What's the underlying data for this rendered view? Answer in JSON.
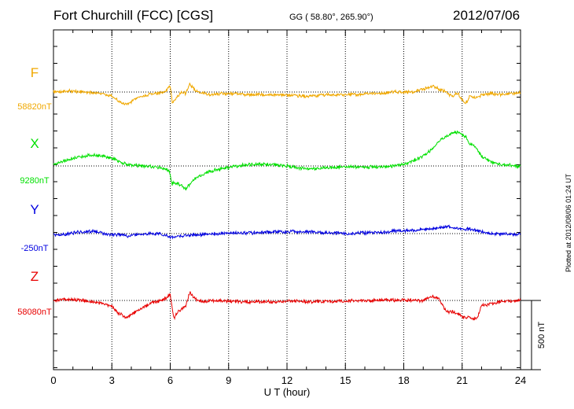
{
  "header": {
    "station": "Fort Churchill (FCC)  [CGS]",
    "coords": "GG ( 58.80°, 265.90°)",
    "date": "2012/07/06"
  },
  "footer": {
    "plotted": "Plotted at 2012/08/06 01:24 UT"
  },
  "colors": {
    "F": "#f0a800",
    "X": "#00e000",
    "Y": "#0000e0",
    "Z": "#e80000",
    "grid": "#000000"
  },
  "chart_data": {
    "type": "line",
    "title": "Fort Churchill (FCC)  [CGS]",
    "xlabel": "U T (hour)",
    "ylabel": "",
    "xlim": [
      0,
      24
    ],
    "x_ticks": [
      "0",
      "3",
      "6",
      "9",
      "12",
      "15",
      "18",
      "21",
      "24"
    ],
    "scale_bar_label": "500 nT",
    "scale_bar_nT": 500,
    "x": [
      0,
      0.5,
      1,
      1.5,
      2,
      2.5,
      3,
      3.3,
      3.6,
      3.8,
      4,
      4.5,
      5,
      5.5,
      5.7,
      5.9,
      6.0,
      6.1,
      6.2,
      6.4,
      6.6,
      6.8,
      7.0,
      7.3,
      7.6,
      8,
      9,
      10,
      11,
      12,
      13,
      14,
      15,
      16,
      17,
      17.5,
      18,
      18.5,
      19,
      19.5,
      19.8,
      20,
      20.3,
      20.5,
      20.8,
      21,
      21.2,
      21.4,
      21.6,
      21.8,
      22,
      22.5,
      23,
      23.5,
      24
    ],
    "series": [
      {
        "name": "F",
        "label": "F",
        "baseline_label": "58820nT",
        "baseline_nT": 58820,
        "values": [
          58820,
          58825,
          58828,
          58822,
          58815,
          58810,
          58790,
          58760,
          58735,
          58730,
          58750,
          58790,
          58805,
          58815,
          58820,
          58850,
          58870,
          58740,
          58760,
          58790,
          58825,
          58810,
          58880,
          58830,
          58810,
          58805,
          58810,
          58802,
          58800,
          58798,
          58790,
          58800,
          58800,
          58805,
          58810,
          58822,
          58820,
          58820,
          58840,
          58860,
          58840,
          58835,
          58800,
          58790,
          58810,
          58760,
          58740,
          58790,
          58780,
          58780,
          58800,
          58810,
          58800,
          58810,
          58815
        ]
      },
      {
        "name": "X",
        "label": "X",
        "baseline_label": "9280nT",
        "baseline_nT": 9280,
        "values": [
          9290,
          9315,
          9335,
          9350,
          9360,
          9355,
          9340,
          9320,
          9300,
          9290,
          9285,
          9280,
          9275,
          9270,
          9260,
          9250,
          9220,
          9140,
          9160,
          9150,
          9135,
          9110,
          9150,
          9190,
          9210,
          9240,
          9270,
          9290,
          9295,
          9280,
          9260,
          9265,
          9275,
          9270,
          9275,
          9280,
          9290,
          9320,
          9350,
          9410,
          9460,
          9480,
          9500,
          9520,
          9525,
          9510,
          9490,
          9440,
          9430,
          9400,
          9350,
          9310,
          9290,
          9285,
          9280
        ]
      },
      {
        "name": "Y",
        "label": "Y",
        "baseline_label": "-250nT",
        "baseline_nT": -250,
        "values": [
          -260,
          -255,
          -245,
          -235,
          -230,
          -245,
          -260,
          -255,
          -260,
          -270,
          -260,
          -255,
          -250,
          -252,
          -260,
          -265,
          -280,
          -275,
          -270,
          -265,
          -270,
          -262,
          -260,
          -258,
          -255,
          -250,
          -248,
          -245,
          -240,
          -235,
          -238,
          -245,
          -250,
          -245,
          -240,
          -230,
          -230,
          -225,
          -220,
          -215,
          -205,
          -205,
          -200,
          -205,
          -210,
          -215,
          -220,
          -215,
          -225,
          -230,
          -240,
          -248,
          -255,
          -258,
          -255
        ]
      },
      {
        "name": "Z",
        "label": "Z",
        "baseline_label": "58080nT",
        "baseline_nT": 58080,
        "values": [
          58080,
          58085,
          58085,
          58080,
          58070,
          58060,
          58040,
          57990,
          57965,
          57960,
          57980,
          58020,
          58060,
          58080,
          58090,
          58110,
          58130,
          58020,
          57950,
          58000,
          58020,
          58040,
          58140,
          58090,
          58070,
          58080,
          58075,
          58070,
          58070,
          58075,
          58072,
          58072,
          58075,
          58080,
          58085,
          58082,
          58085,
          58080,
          58080,
          58110,
          58090,
          58040,
          57990,
          58000,
          57980,
          57960,
          57950,
          57960,
          57940,
          57960,
          58040,
          58060,
          58070,
          58075,
          58080
        ]
      }
    ]
  }
}
